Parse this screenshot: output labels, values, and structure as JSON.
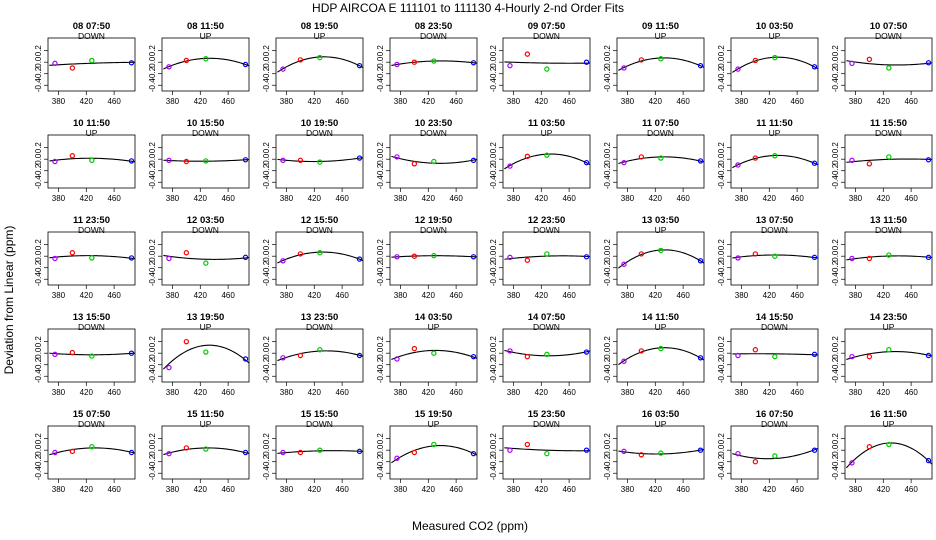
{
  "title": "HDP    AIRCOA E    111101 to 111130    4-Hourly 2-nd Order Fits",
  "xlabel": "Measured CO2 (ppm)",
  "ylabel": "Deviation from Linear (ppm)",
  "chart_data": {
    "type": "scatter",
    "layout": {
      "rows": 5,
      "cols": 8
    },
    "xlim": [
      365,
      490
    ],
    "ylim": [
      -0.5,
      0.42
    ],
    "xticks": [
      380,
      420,
      460
    ],
    "yticks": [
      -0.4,
      -0.2,
      0.0,
      0.2
    ],
    "ytick_labels": [
      "-0.4",
      "-0.2",
      "0.0",
      "0.2"
    ],
    "point_x": [
      375,
      400,
      428,
      485
    ],
    "point_colors": [
      "#aa00ff",
      "#ff0000",
      "#00cc00",
      "#0000ff"
    ],
    "panels": [
      {
        "label": "08 07:50",
        "dir": "DOWN",
        "y": [
          -0.02,
          -0.1,
          0.03,
          -0.01
        ]
      },
      {
        "label": "08 11:50",
        "dir": "UP",
        "y": [
          -0.08,
          0.03,
          0.06,
          -0.04
        ]
      },
      {
        "label": "08 19:50",
        "dir": "UP",
        "y": [
          -0.12,
          0.04,
          0.08,
          -0.06
        ]
      },
      {
        "label": "08 23:50",
        "dir": "DOWN",
        "y": [
          -0.04,
          0.0,
          0.02,
          -0.01
        ]
      },
      {
        "label": "09 07:50",
        "dir": "DOWN",
        "y": [
          -0.06,
          0.14,
          -0.12,
          0.0
        ]
      },
      {
        "label": "09 11:50",
        "dir": "UP",
        "y": [
          -0.1,
          0.04,
          0.06,
          -0.06
        ]
      },
      {
        "label": "10 03:50",
        "dir": "UP",
        "y": [
          -0.12,
          0.03,
          0.08,
          -0.08
        ]
      },
      {
        "label": "10 07:50",
        "dir": "DOWN",
        "y": [
          -0.02,
          0.05,
          -0.1,
          -0.01
        ]
      },
      {
        "label": "10 11:50",
        "dir": "UP",
        "y": [
          -0.04,
          0.06,
          -0.02,
          -0.03
        ]
      },
      {
        "label": "10 15:50",
        "dir": "DOWN",
        "y": [
          -0.02,
          -0.04,
          -0.03,
          -0.01
        ]
      },
      {
        "label": "10 19:50",
        "dir": "DOWN",
        "y": [
          -0.02,
          -0.02,
          -0.05,
          0.02
        ]
      },
      {
        "label": "10 23:50",
        "dir": "DOWN",
        "y": [
          0.04,
          -0.08,
          -0.04,
          -0.02
        ]
      },
      {
        "label": "11 03:50",
        "dir": "UP",
        "y": [
          -0.12,
          0.05,
          0.07,
          -0.06
        ]
      },
      {
        "label": "11 07:50",
        "dir": "DOWN",
        "y": [
          -0.06,
          0.04,
          0.02,
          -0.03
        ]
      },
      {
        "label": "11 11:50",
        "dir": "UP",
        "y": [
          -0.1,
          0.02,
          0.06,
          -0.07
        ]
      },
      {
        "label": "11 15:50",
        "dir": "DOWN",
        "y": [
          -0.02,
          -0.08,
          0.04,
          -0.01
        ]
      },
      {
        "label": "11 23:50",
        "dir": "DOWN",
        "y": [
          -0.04,
          0.06,
          -0.03,
          -0.03
        ]
      },
      {
        "label": "12 03:50",
        "dir": "DOWN",
        "y": [
          -0.04,
          0.06,
          -0.12,
          -0.02
        ]
      },
      {
        "label": "12 15:50",
        "dir": "DOWN",
        "y": [
          -0.08,
          0.04,
          0.06,
          -0.05
        ]
      },
      {
        "label": "12 19:50",
        "dir": "DOWN",
        "y": [
          -0.01,
          0.0,
          0.01,
          -0.01
        ]
      },
      {
        "label": "12 23:50",
        "dir": "DOWN",
        "y": [
          -0.02,
          -0.07,
          0.04,
          -0.01
        ]
      },
      {
        "label": "13 03:50",
        "dir": "UP",
        "y": [
          -0.14,
          0.04,
          0.1,
          -0.08
        ]
      },
      {
        "label": "13 07:50",
        "dir": "DOWN",
        "y": [
          -0.03,
          0.04,
          0.0,
          -0.02
        ]
      },
      {
        "label": "13 11:50",
        "dir": "DOWN",
        "y": [
          -0.04,
          -0.04,
          0.02,
          -0.02
        ]
      },
      {
        "label": "13 15:50",
        "dir": "DOWN",
        "y": [
          -0.02,
          0.01,
          -0.05,
          0.0
        ]
      },
      {
        "label": "13 19:50",
        "dir": "UP",
        "y": [
          -0.25,
          0.2,
          0.02,
          -0.1
        ]
      },
      {
        "label": "13 23:50",
        "dir": "DOWN",
        "y": [
          -0.08,
          -0.04,
          0.06,
          -0.04
        ]
      },
      {
        "label": "14 03:50",
        "dir": "UP",
        "y": [
          -0.1,
          0.08,
          0.0,
          -0.06
        ]
      },
      {
        "label": "14 07:50",
        "dir": "DOWN",
        "y": [
          0.04,
          -0.06,
          -0.02,
          0.02
        ]
      },
      {
        "label": "14 11:50",
        "dir": "UP",
        "y": [
          -0.14,
          0.04,
          0.08,
          -0.08
        ]
      },
      {
        "label": "14 15:50",
        "dir": "DOWN",
        "y": [
          -0.04,
          0.06,
          -0.06,
          -0.02
        ]
      },
      {
        "label": "14 23:50",
        "dir": "UP",
        "y": [
          -0.06,
          -0.06,
          0.06,
          -0.04
        ]
      },
      {
        "label": "15 07:50",
        "dir": "DOWN",
        "y": [
          -0.04,
          -0.02,
          0.06,
          -0.04
        ]
      },
      {
        "label": "15 11:50",
        "dir": "UP",
        "y": [
          -0.06,
          0.04,
          0.02,
          -0.04
        ]
      },
      {
        "label": "15 15:50",
        "dir": "DOWN",
        "y": [
          -0.04,
          -0.04,
          0.0,
          -0.02
        ]
      },
      {
        "label": "15 19:50",
        "dir": "UP",
        "y": [
          -0.14,
          -0.04,
          0.1,
          -0.06
        ]
      },
      {
        "label": "15 23:50",
        "dir": "DOWN",
        "y": [
          0.0,
          0.1,
          -0.06,
          0.0
        ]
      },
      {
        "label": "16 03:50",
        "dir": "UP",
        "y": [
          -0.02,
          -0.08,
          -0.05,
          0.0
        ]
      },
      {
        "label": "16 07:50",
        "dir": "DOWN",
        "y": [
          -0.06,
          -0.2,
          -0.1,
          0.0
        ]
      },
      {
        "label": "16 11:50",
        "dir": "UP",
        "y": [
          -0.22,
          0.06,
          0.1,
          -0.18
        ]
      }
    ]
  }
}
